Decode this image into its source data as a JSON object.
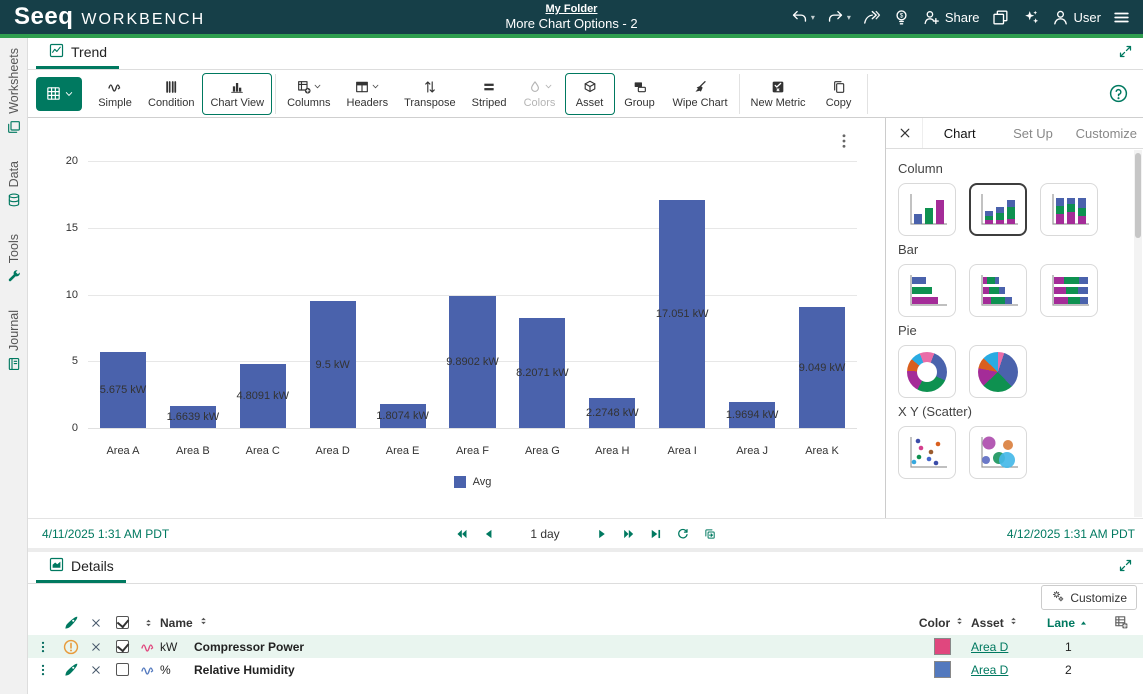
{
  "header": {
    "logo_seeq": "Seeq",
    "logo_workbench": "WORKBENCH",
    "breadcrumb": "My Folder",
    "worksheet_title": "More Chart Options - 2",
    "actions": [
      {
        "icon": "undo-icon",
        "caret": true
      },
      {
        "icon": "redo-icon",
        "caret": true
      },
      {
        "icon": "forward-icon"
      },
      {
        "icon": "insight-icon"
      },
      {
        "icon": "share-user-icon",
        "label": "Share"
      },
      {
        "icon": "windows-icon"
      },
      {
        "icon": "ai-sparkles-icon"
      },
      {
        "icon": "user-icon",
        "label": "User"
      },
      {
        "icon": "menu-icon"
      }
    ]
  },
  "sidebar": {
    "items": [
      {
        "label": "Worksheets",
        "icon": "worksheets-icon"
      },
      {
        "label": "Data",
        "icon": "data-icon"
      },
      {
        "label": "Tools",
        "icon": "tools-icon"
      },
      {
        "label": "Journal",
        "icon": "journal-icon"
      }
    ]
  },
  "trend": {
    "tab_label": "Trend",
    "help_icon": "help-icon",
    "toolbar_buttons": [
      {
        "icon": "grid-icon",
        "caret": true,
        "state": "primary"
      },
      {
        "label": "Simple",
        "icon": "wave-icon"
      },
      {
        "label": "Condition",
        "icon": "condition-icon"
      },
      {
        "label": "Chart View",
        "icon": "chart-view-icon",
        "state": "active",
        "sep_after": true
      },
      {
        "label": "Columns",
        "icon": "table-add-icon",
        "caret": true
      },
      {
        "label": "Headers",
        "icon": "table-headers-icon",
        "caret": true
      },
      {
        "label": "Transpose",
        "icon": "transpose-icon"
      },
      {
        "label": "Striped",
        "icon": "striped-icon"
      },
      {
        "label": "Colors",
        "icon": "droplet-icon",
        "caret": true,
        "state": "disabled"
      },
      {
        "label": "Asset",
        "icon": "cube-icon",
        "state": "active"
      },
      {
        "label": "Group",
        "icon": "group-icon"
      },
      {
        "label": "Wipe Chart",
        "icon": "wipe-icon",
        "sep_after": true
      },
      {
        "label": "New Metric",
        "icon": "new-metric-icon"
      },
      {
        "label": "Copy",
        "icon": "copy-icon",
        "sep_after": true
      }
    ],
    "range": {
      "start": "4/11/2025 1:31 AM",
      "start_tz": "PDT",
      "duration": "1 day",
      "end": "4/12/2025 1:31 AM",
      "end_tz": "PDT",
      "controls": [
        "rewind-icon",
        "step-back-icon",
        "play-icon",
        "fastforward-icon",
        "skip-end-icon",
        "refresh-icon",
        "investigate-icon"
      ]
    }
  },
  "chart_data": {
    "type": "bar",
    "categories": [
      "Area A",
      "Area B",
      "Area C",
      "Area D",
      "Area E",
      "Area F",
      "Area G",
      "Area H",
      "Area I",
      "Area J",
      "Area K"
    ],
    "values": [
      5.675,
      1.6639,
      4.8091,
      9.5,
      1.8074,
      9.8902,
      8.2071,
      2.2748,
      17.051,
      1.9694,
      9.049
    ],
    "bar_labels": [
      "5.675 kW",
      "1.6639 kW",
      "4.8091 kW",
      "9.5 kW",
      "1.8074 kW",
      "9.8902 kW",
      "8.2071 kW",
      "2.2748 kW",
      "17.051 kW",
      "1.9694 kW",
      "9.049 kW"
    ],
    "unit": "kW",
    "series_name": "Avg",
    "series_color": "#4A62AC",
    "ylim": [
      0,
      20
    ],
    "yticks": [
      0,
      5,
      10,
      15,
      20
    ],
    "grid": true,
    "legend_position": "bottom",
    "title": "",
    "xlabel": "",
    "ylabel": ""
  },
  "chart_panel": {
    "close_icon": "close-icon",
    "tabs": [
      {
        "label": "Chart",
        "active": true
      },
      {
        "label": "Set Up",
        "active": false
      },
      {
        "label": "Customize",
        "active": false
      }
    ],
    "sections": [
      {
        "title": "Column",
        "options": [
          {
            "thumb": "col-basic"
          },
          {
            "thumb": "col-stacked",
            "selected": true
          },
          {
            "thumb": "col-100"
          }
        ]
      },
      {
        "title": "Bar",
        "options": [
          {
            "thumb": "bar-basic"
          },
          {
            "thumb": "bar-stacked"
          },
          {
            "thumb": "bar-100"
          }
        ]
      },
      {
        "title": "Pie",
        "options": [
          {
            "thumb": "donut"
          },
          {
            "thumb": "pie"
          }
        ]
      },
      {
        "title": "X Y (Scatter)",
        "options": [
          {
            "thumb": "scatter"
          },
          {
            "thumb": "bubble"
          }
        ]
      }
    ]
  },
  "details": {
    "tab_label": "Details",
    "customize_label": "Customize",
    "columns": {
      "name": "Name",
      "color": "Color",
      "asset": "Asset",
      "lane": "Lane"
    },
    "rows": [
      {
        "status_icon": "warning-icon",
        "checked": true,
        "signal_icon": "wave-icon",
        "unit": "kW",
        "name": "Compressor Power",
        "color": "#E0477E",
        "asset": "Area D",
        "lane": "1",
        "highlight": true
      },
      {
        "status_icon": "rocket-icon",
        "checked": false,
        "signal_icon": "wave-icon",
        "unit": "%",
        "name": "Relative Humidity",
        "color": "#5379BE",
        "asset": "Area D",
        "lane": "2",
        "highlight": false
      }
    ]
  }
}
